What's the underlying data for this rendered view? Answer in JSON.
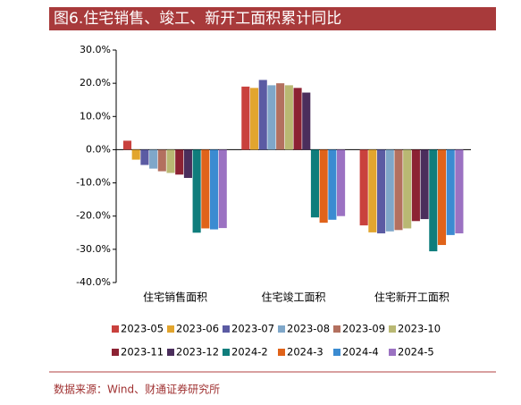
{
  "title": "图6.住宅销售、竣工、新开工面积累计同比",
  "source": "数据来源：Wind、财通证券研究所",
  "chart_data": {
    "type": "bar",
    "categories": [
      "住宅销售面积",
      "住宅竣工面积",
      "住宅新开工面积"
    ],
    "ylim": [
      -40,
      30
    ],
    "yticks": [
      {
        "value": 30,
        "label": "30.0%"
      },
      {
        "value": 20,
        "label": "20.0%"
      },
      {
        "value": 10,
        "label": "10.0%"
      },
      {
        "value": 0,
        "label": "0.0%"
      },
      {
        "value": -10,
        "label": "-10.0%"
      },
      {
        "value": -20,
        "label": "-20.0%"
      },
      {
        "value": -30,
        "label": "-30.0%"
      },
      {
        "value": -40,
        "label": "-40.0%"
      }
    ],
    "series": [
      {
        "name": "2023-05",
        "color": "#c9413d",
        "values": [
          2.7,
          19.0,
          -22.8
        ]
      },
      {
        "name": "2023-06",
        "color": "#e2a52e",
        "values": [
          -3.0,
          18.6,
          -24.9
        ]
      },
      {
        "name": "2023-07",
        "color": "#5b5ba3",
        "values": [
          -4.6,
          21.0,
          -25.2
        ]
      },
      {
        "name": "2023-08",
        "color": "#7fa7c9",
        "values": [
          -5.7,
          19.4,
          -24.6
        ]
      },
      {
        "name": "2023-09",
        "color": "#b3705f",
        "values": [
          -6.5,
          20.0,
          -24.2
        ]
      },
      {
        "name": "2023-10",
        "color": "#b9b873",
        "values": [
          -7.0,
          19.4,
          -23.7
        ]
      },
      {
        "name": "2023-11",
        "color": "#8c2233",
        "values": [
          -7.5,
          18.6,
          -21.5
        ]
      },
      {
        "name": "2023-12",
        "color": "#4b2e5c",
        "values": [
          -8.5,
          17.2,
          -20.9
        ]
      },
      {
        "name": "2024-2",
        "color": "#0f7d7c",
        "values": [
          -25.0,
          -20.4,
          -30.6
        ]
      },
      {
        "name": "2024-3",
        "color": "#e0631a",
        "values": [
          -23.7,
          -22.0,
          -28.7
        ]
      },
      {
        "name": "2024-4",
        "color": "#3b8bd1",
        "values": [
          -24.0,
          -21.1,
          -25.7
        ]
      },
      {
        "name": "2024-5",
        "color": "#9b72c2",
        "values": [
          -23.6,
          -20.0,
          -25.2
        ]
      }
    ]
  }
}
